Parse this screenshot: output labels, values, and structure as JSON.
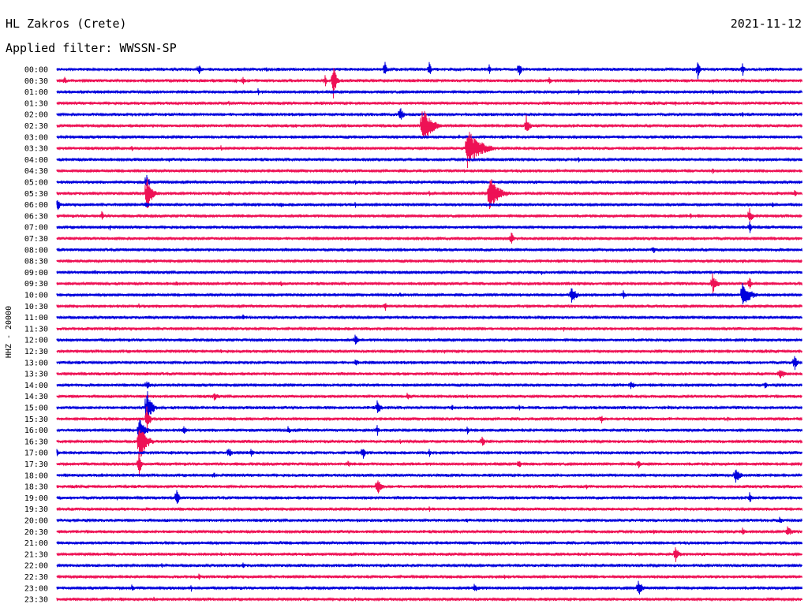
{
  "header": {
    "station": "HL Zakros (Crete)",
    "date": "2021-11-12",
    "filter_label": "Applied filter: WWSSN-SP"
  },
  "chart_data": {
    "type": "line",
    "ylabel": "HHZ - 20000",
    "colors": [
      "#0000dd",
      "#ee1155"
    ],
    "x_range_minutes": [
      0,
      30
    ],
    "rows": [
      {
        "label": "00:00",
        "events": [
          [
            1,
            0.5,
            3
          ],
          [
            19,
            0.6,
            10
          ],
          [
            44,
            0.6,
            14
          ],
          [
            50,
            0.6,
            10
          ],
          [
            62,
            0.6,
            14
          ],
          [
            86,
            0.6,
            13
          ],
          [
            92,
            0.6,
            10
          ],
          [
            58,
            0.5,
            8
          ],
          [
            28,
            0.5,
            6
          ]
        ]
      },
      {
        "label": "00:30",
        "events": [
          [
            1,
            0.6,
            8
          ],
          [
            21,
            0.5,
            6
          ],
          [
            25,
            0.5,
            8
          ],
          [
            36,
            0.6,
            8
          ],
          [
            37,
            0.8,
            30
          ],
          [
            66,
            0.8,
            6
          ],
          [
            24,
            0.5,
            5
          ]
        ]
      },
      {
        "label": "01:00",
        "events": [
          [
            5,
            0.5,
            4
          ],
          [
            27,
            0.5,
            5
          ],
          [
            70,
            0.5,
            4
          ],
          [
            88,
            0.5,
            4
          ]
        ]
      },
      {
        "label": "01:30",
        "events": [
          [
            23,
            0.5,
            5
          ],
          [
            55,
            0.5,
            4
          ],
          [
            83,
            0.5,
            4
          ]
        ]
      },
      {
        "label": "02:00",
        "events": [
          [
            46,
            0.8,
            14
          ],
          [
            10,
            0.5,
            4
          ],
          [
            92,
            0.5,
            4
          ]
        ]
      },
      {
        "label": "02:30",
        "events": [
          [
            49,
            2.5,
            26
          ],
          [
            63,
            0.8,
            16
          ],
          [
            32,
            0.5,
            4
          ]
        ]
      },
      {
        "label": "03:00",
        "events": [
          [
            54,
            0.5,
            4
          ]
        ]
      },
      {
        "label": "03:30",
        "events": [
          [
            55,
            3.5,
            28
          ],
          [
            10,
            0.5,
            5
          ],
          [
            22,
            0.5,
            5
          ],
          [
            84,
            0.5,
            4
          ]
        ]
      },
      {
        "label": "04:00",
        "events": [
          [
            15,
            0.5,
            4
          ],
          [
            70,
            0.5,
            4
          ]
        ]
      },
      {
        "label": "04:30",
        "events": [
          [
            12,
            0.5,
            4
          ],
          [
            88,
            0.5,
            5
          ]
        ]
      },
      {
        "label": "05:00",
        "events": [
          [
            12,
            0.6,
            16
          ],
          [
            40,
            0.5,
            4
          ]
        ]
      },
      {
        "label": "05:30",
        "events": [
          [
            12,
            1.3,
            30
          ],
          [
            23,
            0.5,
            6
          ],
          [
            58,
            2.5,
            26
          ],
          [
            50,
            0.5,
            4
          ],
          [
            99,
            0.5,
            8
          ]
        ]
      },
      {
        "label": "06:00",
        "events": [
          [
            0,
            0.8,
            10
          ],
          [
            12,
            0.5,
            8
          ],
          [
            30,
            0.5,
            5
          ],
          [
            40,
            0.5,
            5
          ],
          [
            96,
            0.5,
            6
          ]
        ]
      },
      {
        "label": "06:30",
        "events": [
          [
            6,
            0.6,
            8
          ],
          [
            85,
            0.6,
            5
          ],
          [
            93,
            0.6,
            14
          ]
        ]
      },
      {
        "label": "07:00",
        "events": [
          [
            7,
            0.6,
            6
          ],
          [
            93,
            0.5,
            8
          ]
        ]
      },
      {
        "label": "07:30",
        "events": [
          [
            61,
            0.6,
            12
          ]
        ]
      },
      {
        "label": "08:00",
        "events": [
          [
            80,
            0.8,
            7
          ]
        ]
      },
      {
        "label": "08:30",
        "events": [
          [
            28,
            0.5,
            4
          ],
          [
            92,
            0.5,
            4
          ]
        ]
      },
      {
        "label": "09:00",
        "events": [
          [
            5,
            0.5,
            6
          ],
          [
            65,
            0.5,
            4
          ],
          [
            90,
            0.5,
            4
          ]
        ]
      },
      {
        "label": "09:30",
        "events": [
          [
            16,
            0.6,
            6
          ],
          [
            30,
            0.6,
            5
          ],
          [
            88,
            1.2,
            14
          ],
          [
            93,
            0.5,
            10
          ]
        ]
      },
      {
        "label": "10:00",
        "events": [
          [
            69,
            1.5,
            12
          ],
          [
            76,
            0.8,
            7
          ],
          [
            92,
            2.0,
            20
          ],
          [
            46,
            0.5,
            5
          ]
        ]
      },
      {
        "label": "10:30",
        "events": [
          [
            11,
            0.5,
            5
          ],
          [
            44,
            0.6,
            8
          ],
          [
            38,
            0.5,
            4
          ]
        ]
      },
      {
        "label": "11:00",
        "events": [
          [
            25,
            0.5,
            6
          ],
          [
            66,
            0.5,
            4
          ],
          [
            89,
            0.5,
            4
          ]
        ]
      },
      {
        "label": "11:30",
        "events": [
          [
            7,
            0.5,
            4
          ],
          [
            17,
            0.5,
            4
          ],
          [
            68,
            0.5,
            4
          ]
        ]
      },
      {
        "label": "12:00",
        "events": [
          [
            40,
            1.0,
            8
          ]
        ]
      },
      {
        "label": "12:30",
        "events": [
          [
            22,
            0.5,
            4
          ],
          [
            52,
            0.5,
            4
          ]
        ]
      },
      {
        "label": "13:00",
        "events": [
          [
            40,
            1.5,
            5
          ],
          [
            99,
            0.8,
            12
          ],
          [
            90,
            0.5,
            4
          ]
        ]
      },
      {
        "label": "13:30",
        "events": [
          [
            12,
            0.6,
            5
          ],
          [
            97,
            1.5,
            8
          ]
        ]
      },
      {
        "label": "14:00",
        "events": [
          [
            12,
            0.8,
            10
          ],
          [
            77,
            1.5,
            6
          ],
          [
            95,
            1.0,
            5
          ]
        ]
      },
      {
        "label": "14:30",
        "events": [
          [
            21,
            2.0,
            6
          ],
          [
            47,
            1.0,
            5
          ],
          [
            55,
            0.5,
            5
          ]
        ]
      },
      {
        "label": "15:00",
        "events": [
          [
            12,
            1.2,
            30
          ],
          [
            43,
            1.0,
            10
          ],
          [
            53,
            0.5,
            6
          ],
          [
            62,
            0.5,
            5
          ],
          [
            82,
            0.5,
            5
          ]
        ]
      },
      {
        "label": "15:30",
        "events": [
          [
            12,
            0.8,
            20
          ],
          [
            73,
            0.6,
            8
          ],
          [
            90,
            0.5,
            4
          ]
        ]
      },
      {
        "label": "16:00",
        "events": [
          [
            11,
            1.5,
            20
          ],
          [
            17,
            0.6,
            8
          ],
          [
            31,
            0.8,
            6
          ],
          [
            43,
            0.5,
            8
          ],
          [
            55,
            0.5,
            8
          ]
        ]
      },
      {
        "label": "16:30",
        "events": [
          [
            11,
            1.8,
            30
          ],
          [
            57,
            0.8,
            10
          ],
          [
            46,
            0.5,
            5
          ]
        ]
      },
      {
        "label": "17:00",
        "events": [
          [
            0,
            0.5,
            6
          ],
          [
            23,
            0.8,
            10
          ],
          [
            26,
            1.0,
            6
          ],
          [
            41,
            0.6,
            12
          ],
          [
            50,
            0.5,
            6
          ]
        ]
      },
      {
        "label": "17:30",
        "events": [
          [
            39,
            0.8,
            6
          ],
          [
            62,
            0.6,
            10
          ],
          [
            78,
            0.6,
            8
          ],
          [
            11,
            0.5,
            20
          ]
        ]
      },
      {
        "label": "18:00",
        "events": [
          [
            6,
            0.5,
            4
          ],
          [
            21,
            0.5,
            8
          ],
          [
            91,
            1.2,
            14
          ]
        ]
      },
      {
        "label": "18:30",
        "events": [
          [
            43,
            1.2,
            12
          ],
          [
            71,
            0.5,
            5
          ]
        ]
      },
      {
        "label": "19:00",
        "events": [
          [
            16,
            0.8,
            14
          ],
          [
            93,
            0.6,
            8
          ],
          [
            8,
            0.5,
            4
          ]
        ]
      },
      {
        "label": "19:30",
        "events": [
          [
            42,
            0.5,
            4
          ],
          [
            50,
            0.5,
            4
          ]
        ]
      },
      {
        "label": "20:00",
        "events": [
          [
            55,
            0.5,
            5
          ],
          [
            97,
            1.0,
            6
          ]
        ]
      },
      {
        "label": "20:30",
        "events": [
          [
            80,
            0.8,
            6
          ],
          [
            92,
            1.0,
            6
          ],
          [
            98,
            1.2,
            9
          ]
        ]
      },
      {
        "label": "21:00",
        "events": [
          [
            30,
            0.5,
            4
          ],
          [
            60,
            0.5,
            4
          ]
        ]
      },
      {
        "label": "21:30",
        "events": [
          [
            22,
            0.5,
            4
          ],
          [
            32,
            0.5,
            4
          ],
          [
            83,
            1.0,
            12
          ]
        ]
      },
      {
        "label": "22:00",
        "events": [
          [
            14,
            0.5,
            5
          ],
          [
            25,
            0.5,
            6
          ],
          [
            40,
            0.5,
            4
          ]
        ]
      },
      {
        "label": "22:30",
        "events": [
          [
            19,
            0.5,
            6
          ],
          [
            60,
            0.5,
            4
          ]
        ]
      },
      {
        "label": "23:00",
        "events": [
          [
            10,
            0.6,
            6
          ],
          [
            18,
            0.5,
            5
          ],
          [
            56,
            1.5,
            6
          ],
          [
            78,
            1.2,
            12
          ]
        ]
      },
      {
        "label": "23:30",
        "events": [
          [
            13,
            0.5,
            4
          ],
          [
            40,
            0.5,
            4
          ]
        ]
      }
    ]
  }
}
